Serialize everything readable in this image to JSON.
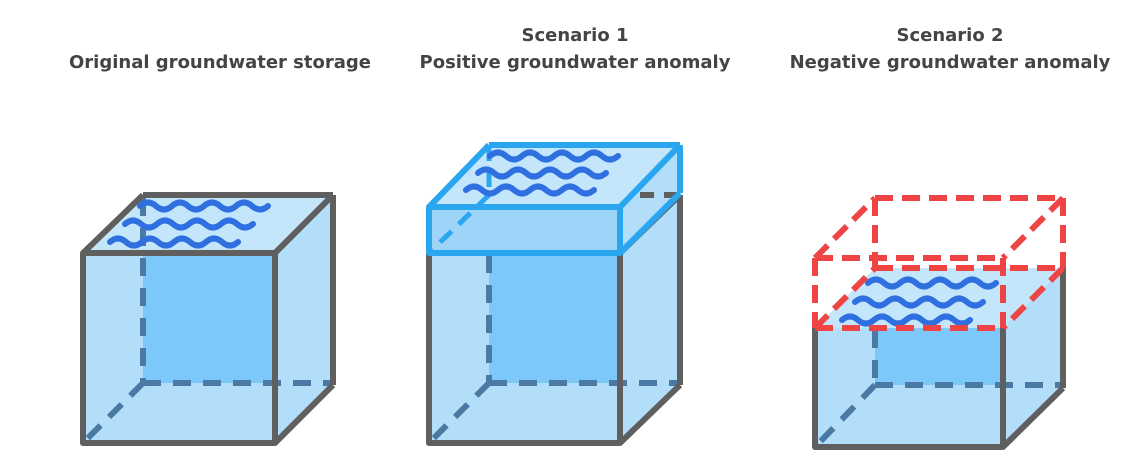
{
  "panels": [
    {
      "title_lines": [
        "Original groundwater storage"
      ]
    },
    {
      "title_lines": [
        "Scenario 1",
        "Positive groundwater anomaly"
      ]
    },
    {
      "title_lines": [
        "Scenario 2",
        "Negative groundwater anomaly"
      ]
    }
  ],
  "colors": {
    "box_outline": "#5f5f5f",
    "hidden_edge": "#4a7aa3",
    "water_fill": "#b3defa",
    "back_face": "#7cc8fb",
    "wave": "#2f6fe0",
    "surplus_outline": "#2aa6f0",
    "deficit_outline": "#ef4444"
  },
  "icons": [
    "water-wave-icon"
  ]
}
